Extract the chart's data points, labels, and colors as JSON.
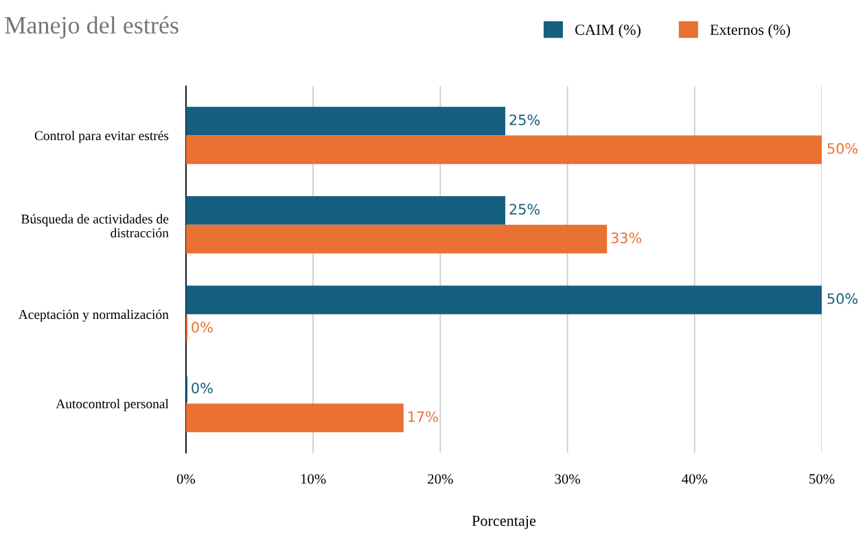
{
  "chart_data": {
    "type": "bar",
    "orientation": "horizontal",
    "title": "Manejo del estrés",
    "xlabel": "Porcentaje",
    "categories": [
      "Control para evitar estrés",
      "Búsqueda de actividades de distracción",
      "Aceptación y normalización",
      "Autocontrol personal"
    ],
    "series": [
      {
        "name": "CAIM (%)",
        "color": "#175f80",
        "values": [
          25,
          25,
          50,
          0
        ],
        "value_labels": [
          "25%",
          "25%",
          "50%",
          "0%"
        ]
      },
      {
        "name": "Externos (%)",
        "color": "#e97132",
        "values": [
          50,
          33,
          0,
          17
        ],
        "value_labels": [
          "50%",
          "33%",
          "0%",
          "17%"
        ]
      }
    ],
    "xlim": [
      0,
      50
    ],
    "xticks": [
      {
        "value": 0,
        "label": "0%"
      },
      {
        "value": 10,
        "label": "10%"
      },
      {
        "value": 20,
        "label": "20%"
      },
      {
        "value": 30,
        "label": "30%"
      },
      {
        "value": 40,
        "label": "40%"
      },
      {
        "value": 50,
        "label": "50%"
      }
    ],
    "grid": "x",
    "legend": "top right"
  }
}
